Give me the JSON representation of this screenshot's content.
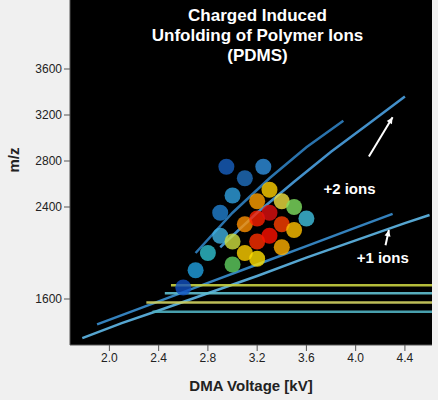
{
  "chart_data": {
    "type": "scatter",
    "title": "Charged Induced Unfolding of Polymer Ions (PDMS)",
    "x_label": "DMA Voltage [kV]",
    "y_label": "m/z",
    "xlim": [
      1.68,
      4.62
    ],
    "ylim": [
      1200,
      4200
    ],
    "xticks": [
      {
        "value": 2,
        "label": "2.0"
      },
      {
        "value": 2.4,
        "label": "2.4"
      },
      {
        "value": 2.8,
        "label": "2.8"
      },
      {
        "value": 3.2,
        "label": "3.2"
      },
      {
        "value": 3.6,
        "label": "3.6"
      },
      {
        "value": 4,
        "label": "4.0"
      },
      {
        "value": 4.4,
        "label": "4.4"
      }
    ],
    "yticks": [
      1600,
      2400,
      2800,
      3200,
      3600
    ],
    "grid": false,
    "series": [
      {
        "type": "line",
        "color": "#5fb8e8",
        "x": [
          1.78,
          2.1,
          2.4,
          2.8,
          3.2,
          3.6,
          4.0,
          4.4,
          4.6
        ],
        "values": [
          1260,
          1390,
          1500,
          1650,
          1800,
          1960,
          2110,
          2260,
          2330
        ]
      },
      {
        "type": "line",
        "color": "#3a8fd0",
        "x": [
          1.9,
          2.4,
          2.8,
          3.2,
          3.6,
          4.0,
          4.3
        ],
        "values": [
          1380,
          1580,
          1740,
          1900,
          2060,
          2220,
          2340
        ]
      },
      {
        "type": "line",
        "color": "#4aa0e0",
        "x": [
          2.9,
          3.2,
          3.5,
          3.8,
          4.1,
          4.4
        ],
        "values": [
          2050,
          2350,
          2620,
          2880,
          3120,
          3360
        ]
      },
      {
        "type": "line",
        "color": "#2f7fc0",
        "x": [
          2.7,
          3.0,
          3.3,
          3.6,
          3.9
        ],
        "values": [
          2000,
          2350,
          2650,
          2920,
          3150
        ]
      },
      {
        "type": "line",
        "color": "#c8d040",
        "x": [
          2.5,
          4.62
        ],
        "values": [
          1720,
          1720
        ]
      },
      {
        "type": "line",
        "color": "#60c0d0",
        "x": [
          2.45,
          4.62
        ],
        "values": [
          1650,
          1650
        ]
      },
      {
        "type": "line",
        "color": "#d0d060",
        "x": [
          2.3,
          4.62
        ],
        "values": [
          1570,
          1570
        ]
      },
      {
        "type": "line",
        "color": "#50b0c0",
        "x": [
          2.35,
          4.62
        ],
        "values": [
          1490,
          1490
        ]
      },
      {
        "type": "scatter",
        "x": [
          2.6,
          2.7,
          2.8,
          2.9,
          2.9,
          3.0,
          3.0,
          3.0,
          3.1,
          3.1,
          3.1,
          3.2,
          3.2,
          3.2,
          3.3,
          3.3,
          3.3,
          3.4,
          3.4,
          3.4,
          3.5,
          3.5,
          3.2,
          3.6,
          2.95,
          3.25
        ],
        "values": [
          1700,
          1850,
          2000,
          2150,
          2350,
          1900,
          2100,
          2500,
          2000,
          2250,
          2650,
          2100,
          2300,
          2450,
          2150,
          2350,
          2550,
          2250,
          2050,
          2450,
          2200,
          2400,
          1950,
          2300,
          2750,
          2750
        ],
        "colors": [
          "#1050c0",
          "#20a0e0",
          "#30c0d0",
          "#40b0e0",
          "#2080d0",
          "#60d060",
          "#d0e040",
          "#30a0e0",
          "#ffd000",
          "#ff9000",
          "#2070c0",
          "#ff3000",
          "#ff2000",
          "#ffa000",
          "#ff1000",
          "#e01010",
          "#ffd000",
          "#ff4000",
          "#ffb000",
          "#f0e040",
          "#ffc000",
          "#80e060",
          "#ffe000",
          "#40c0e0",
          "#1860c0",
          "#3090e0"
        ]
      }
    ],
    "annotations": [
      {
        "text": "+2 ions",
        "x": 3.95,
        "y": 2560,
        "arrow": [
          4.3,
          3180
        ]
      },
      {
        "text": "+1 ions",
        "x": 4.22,
        "y": 1960,
        "arrow": [
          4.27,
          2200
        ]
      }
    ]
  }
}
